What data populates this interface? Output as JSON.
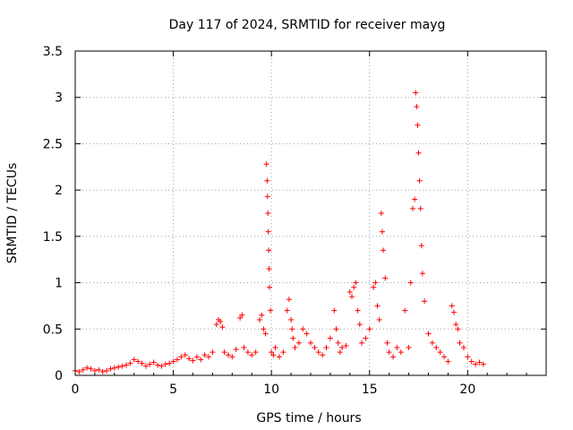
{
  "chart_data": {
    "type": "scatter",
    "title": "Day 117 of 2024, SRMTID for receiver mayg",
    "xlabel": "GPS time / hours",
    "ylabel": "SRMTID / TECUs",
    "xlim": [
      0,
      24
    ],
    "ylim": [
      0,
      3.5
    ],
    "grid": true,
    "marker": "plus",
    "color": "#ff0000",
    "x_ticks": [
      0,
      5,
      10,
      15,
      20
    ],
    "y_ticks": [
      0,
      0.5,
      1,
      1.5,
      2,
      2.5,
      3,
      3.5
    ],
    "x_tick_labels": [
      "0",
      "5",
      "10",
      "15",
      "20"
    ],
    "y_tick_labels": [
      "0",
      "0.5",
      "1",
      "1.5",
      "2",
      "2.5",
      "3",
      "3.5"
    ],
    "series": [
      {
        "name": "SRMTID",
        "x": [
          0.0,
          0.2,
          0.4,
          0.6,
          0.8,
          1.0,
          1.2,
          1.4,
          1.6,
          1.8,
          2.0,
          2.2,
          2.4,
          2.6,
          2.8,
          3.0,
          3.2,
          3.4,
          3.6,
          3.8,
          4.0,
          4.2,
          4.4,
          4.6,
          4.8,
          5.0,
          5.2,
          5.4,
          5.6,
          5.8,
          6.0,
          6.2,
          6.4,
          6.6,
          6.8,
          7.0,
          7.2,
          7.3,
          7.4,
          7.5,
          7.6,
          7.8,
          8.0,
          8.2,
          8.4,
          8.5,
          8.6,
          8.8,
          9.0,
          9.2,
          9.4,
          9.5,
          9.6,
          9.7,
          9.75,
          9.78,
          9.8,
          9.82,
          9.84,
          9.86,
          9.88,
          9.9,
          9.95,
          10.0,
          10.1,
          10.2,
          10.4,
          10.6,
          10.8,
          10.9,
          11.0,
          11.05,
          11.1,
          11.2,
          11.4,
          11.6,
          11.8,
          12.0,
          12.2,
          12.4,
          12.6,
          12.8,
          13.0,
          13.2,
          13.3,
          13.4,
          13.5,
          13.6,
          13.8,
          14.0,
          14.1,
          14.2,
          14.3,
          14.4,
          14.5,
          14.6,
          14.8,
          15.0,
          15.2,
          15.3,
          15.4,
          15.5,
          15.6,
          15.65,
          15.7,
          15.8,
          15.9,
          16.0,
          16.2,
          16.4,
          16.6,
          16.8,
          17.0,
          17.1,
          17.2,
          17.3,
          17.35,
          17.4,
          17.45,
          17.5,
          17.55,
          17.6,
          17.65,
          17.7,
          17.8,
          18.0,
          18.2,
          18.4,
          18.6,
          18.8,
          19.0,
          19.2,
          19.3,
          19.4,
          19.5,
          19.6,
          19.8,
          20.0,
          20.2,
          20.4,
          20.6,
          20.8
        ],
        "y": [
          0.05,
          0.04,
          0.06,
          0.08,
          0.07,
          0.05,
          0.06,
          0.04,
          0.05,
          0.07,
          0.08,
          0.09,
          0.1,
          0.11,
          0.13,
          0.17,
          0.15,
          0.13,
          0.1,
          0.12,
          0.14,
          0.11,
          0.1,
          0.12,
          0.13,
          0.15,
          0.17,
          0.2,
          0.22,
          0.18,
          0.16,
          0.2,
          0.17,
          0.22,
          0.2,
          0.25,
          0.55,
          0.6,
          0.58,
          0.52,
          0.25,
          0.22,
          0.2,
          0.28,
          0.62,
          0.65,
          0.3,
          0.25,
          0.22,
          0.25,
          0.6,
          0.65,
          0.5,
          0.45,
          2.28,
          2.1,
          1.93,
          1.75,
          1.55,
          1.35,
          1.15,
          0.95,
          0.7,
          0.25,
          0.22,
          0.3,
          0.2,
          0.25,
          0.7,
          0.82,
          0.6,
          0.5,
          0.4,
          0.3,
          0.35,
          0.5,
          0.45,
          0.35,
          0.3,
          0.25,
          0.22,
          0.3,
          0.4,
          0.7,
          0.5,
          0.35,
          0.25,
          0.3,
          0.32,
          0.9,
          0.85,
          0.95,
          1.0,
          0.7,
          0.55,
          0.35,
          0.4,
          0.5,
          0.95,
          1.0,
          0.75,
          0.6,
          1.75,
          1.55,
          1.35,
          1.05,
          0.35,
          0.25,
          0.2,
          0.3,
          0.25,
          0.7,
          0.3,
          1.0,
          1.8,
          1.9,
          3.05,
          2.9,
          2.7,
          2.4,
          2.1,
          1.8,
          1.4,
          1.1,
          0.8,
          0.45,
          0.35,
          0.3,
          0.25,
          0.2,
          0.15,
          0.75,
          0.68,
          0.55,
          0.5,
          0.35,
          0.3,
          0.2,
          0.15,
          0.12,
          0.14,
          0.12
        ]
      }
    ]
  }
}
